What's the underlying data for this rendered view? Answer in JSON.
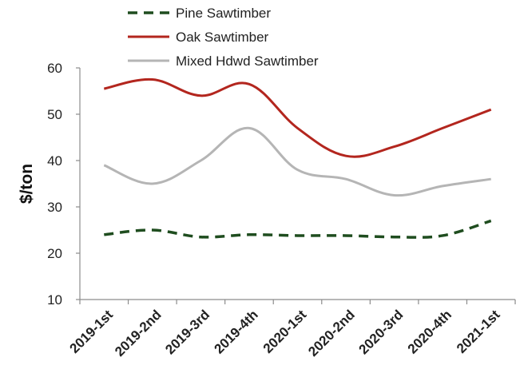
{
  "chart_data": {
    "type": "line",
    "title": "",
    "xlabel": "",
    "ylabel": "$/ton",
    "ylim": [
      10,
      60
    ],
    "yticks": [
      "10",
      "20",
      "30",
      "40",
      "50",
      "60"
    ],
    "categories": [
      "2019-1st",
      "2019-2nd",
      "2019-3rd",
      "2019-4th",
      "2020-1st",
      "2020-2nd",
      "2020-3rd",
      "2020-4th",
      "2021-1st"
    ],
    "grid": false,
    "legend_position": "top",
    "series": [
      {
        "name": "Pine Sawtimber",
        "color": "#1f4d1f",
        "style": "dashed",
        "values": [
          24,
          25,
          23.5,
          24,
          23.8,
          23.8,
          23.5,
          23.8,
          27
        ]
      },
      {
        "name": "Oak Sawtimber",
        "color": "#b3261e",
        "style": "solid",
        "values": [
          55.5,
          57.5,
          54,
          56.5,
          47,
          41,
          43,
          47,
          51
        ]
      },
      {
        "name": "Mixed Hdwd Sawtimber",
        "color": "#b5b5b5",
        "style": "solid",
        "values": [
          39,
          35,
          40,
          47,
          38,
          36,
          32.5,
          34.5,
          36
        ]
      }
    ]
  }
}
